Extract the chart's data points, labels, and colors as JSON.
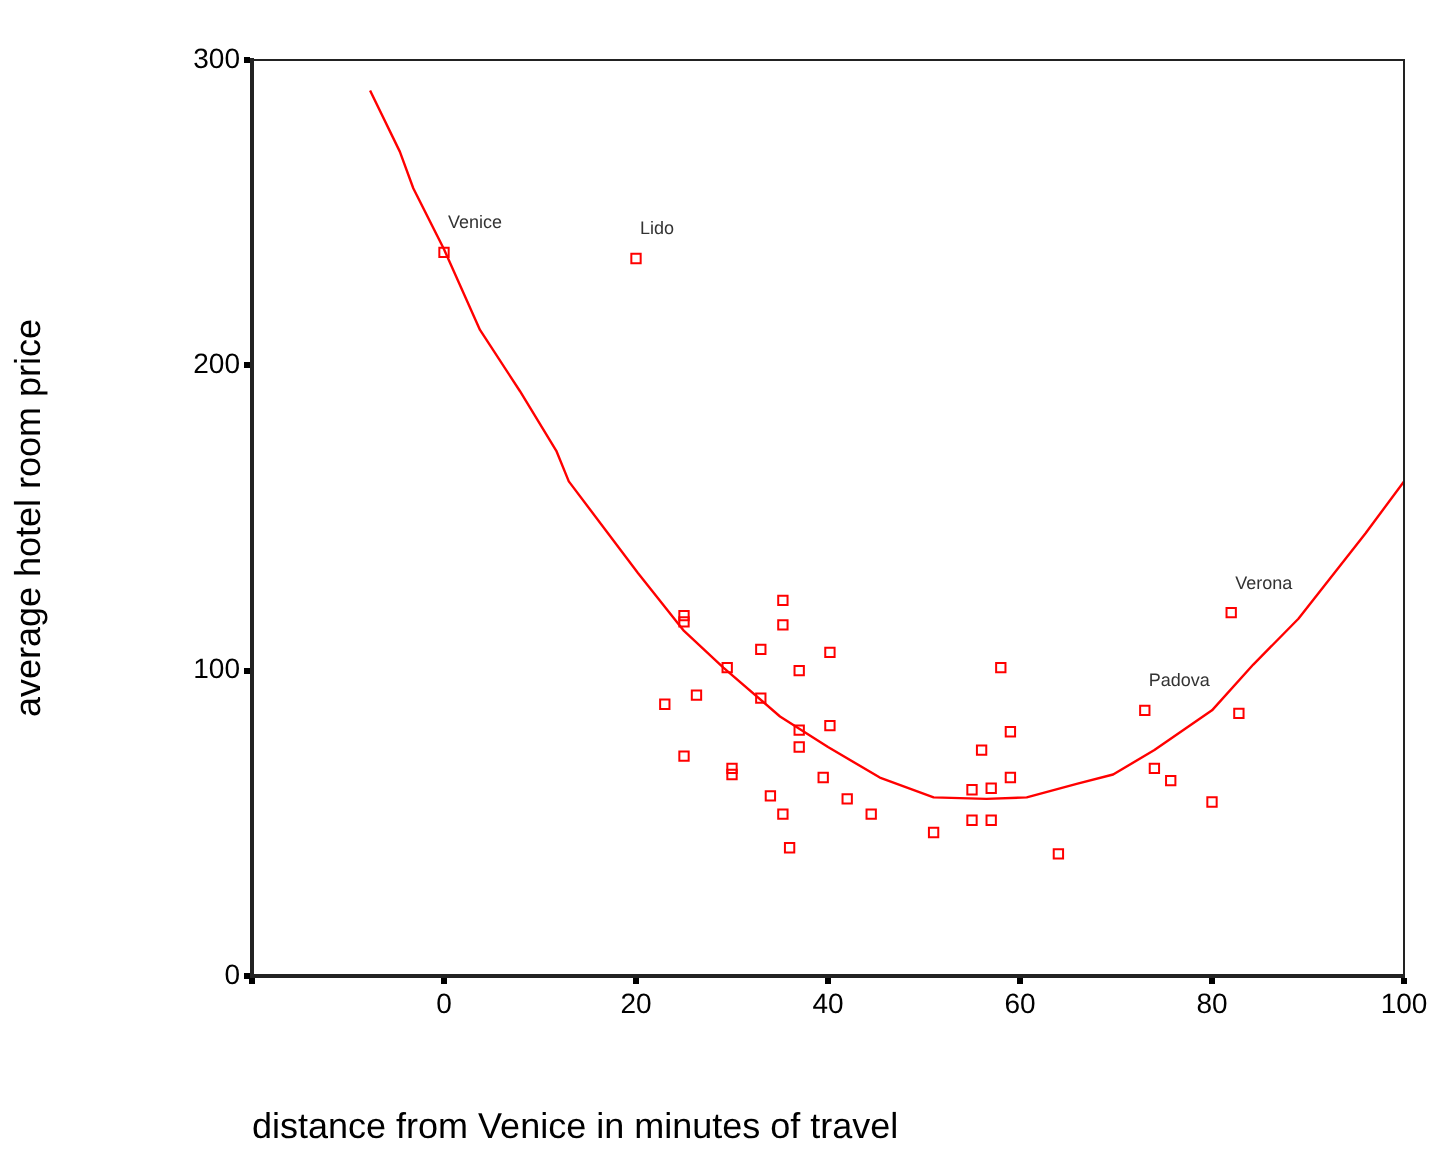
{
  "chart_data": {
    "type": "scatter",
    "xlabel": "distance from Venice in minutes of travel",
    "ylabel": "average hotel room price",
    "xlim": [
      -20,
      100
    ],
    "ylim": [
      0,
      300
    ],
    "xticks": [
      {
        "value": -20,
        "label": null
      },
      0,
      20,
      40,
      60,
      80,
      100
    ],
    "yticks": [
      0,
      100,
      200,
      300
    ],
    "grid": false,
    "series": [
      {
        "color": "#ff0000",
        "marker": "square",
        "x": [
          0,
          20,
          25,
          25,
          35.3,
          35.3,
          33,
          40.2,
          29.5,
          37,
          58,
          26.3,
          23,
          33,
          37,
          40.2,
          37,
          59,
          56,
          25,
          30,
          30,
          39.5,
          59,
          34,
          42,
          55,
          57,
          35.3,
          44.5,
          55,
          57,
          51,
          36,
          64,
          82,
          73,
          82.8,
          74,
          75.7,
          80
        ],
        "values": [
          237,
          235,
          118,
          116,
          123,
          115,
          107,
          106,
          101,
          100,
          101,
          92,
          89,
          91,
          80.5,
          82,
          75,
          80,
          74,
          72,
          68,
          66,
          65,
          65,
          59,
          58,
          61,
          61.5,
          53,
          53,
          51,
          51,
          47,
          42,
          40,
          119,
          87,
          86,
          68,
          64,
          57
        ]
      },
      {
        "type": "line",
        "color": "#ff0000",
        "marker": "none",
        "x": [
          -7.7,
          -4.6,
          -3.2,
          0,
          3.75,
          7.9,
          11.7,
          13,
          20.2,
          25,
          29.1,
          35,
          40,
          45.4,
          51,
          56.5,
          60.7,
          66,
          69.7,
          74,
          80,
          84.3,
          89,
          96,
          100
        ],
        "values": [
          290,
          270,
          258,
          238,
          211.6,
          191.6,
          172,
          162,
          132,
          113,
          101,
          85,
          75,
          65,
          58.5,
          58,
          58.5,
          63,
          66,
          74,
          87,
          102,
          117,
          145,
          162
        ]
      }
    ],
    "annotations": [
      {
        "text": "Venice",
        "x": 0,
        "y": 237
      },
      {
        "text": "Lido",
        "x": 20,
        "y": 235
      },
      {
        "text": "Verona",
        "x": 82,
        "y": 119
      },
      {
        "text": "Padova",
        "x": 73,
        "y": 87
      }
    ]
  }
}
